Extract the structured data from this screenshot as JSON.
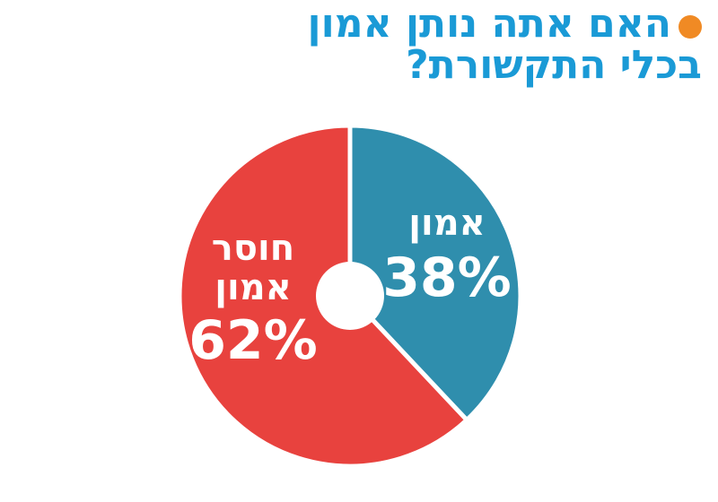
{
  "title": {
    "line1": "האם אתה נותן אמון",
    "line2": "בכלי התקשורת?"
  },
  "colors": {
    "title": "#1a9ad6",
    "bullet": "#f08a24",
    "trust": "#2f8ead",
    "no_trust": "#e8423e",
    "background": "#ffffff"
  },
  "chart_data": {
    "type": "pie",
    "style": "donut",
    "title": "האם אתה נותן אמון בכלי התקשורת?",
    "slices": [
      {
        "label_lines": [
          "אמון"
        ],
        "value": 38,
        "value_label": "38%",
        "color": "#2f8ead"
      },
      {
        "label_lines": [
          "חוסר",
          "אמון"
        ],
        "value": 62,
        "value_label": "62%",
        "color": "#e8423e"
      }
    ],
    "start_angle_deg": 0,
    "direction": "clockwise",
    "legend": "none"
  }
}
